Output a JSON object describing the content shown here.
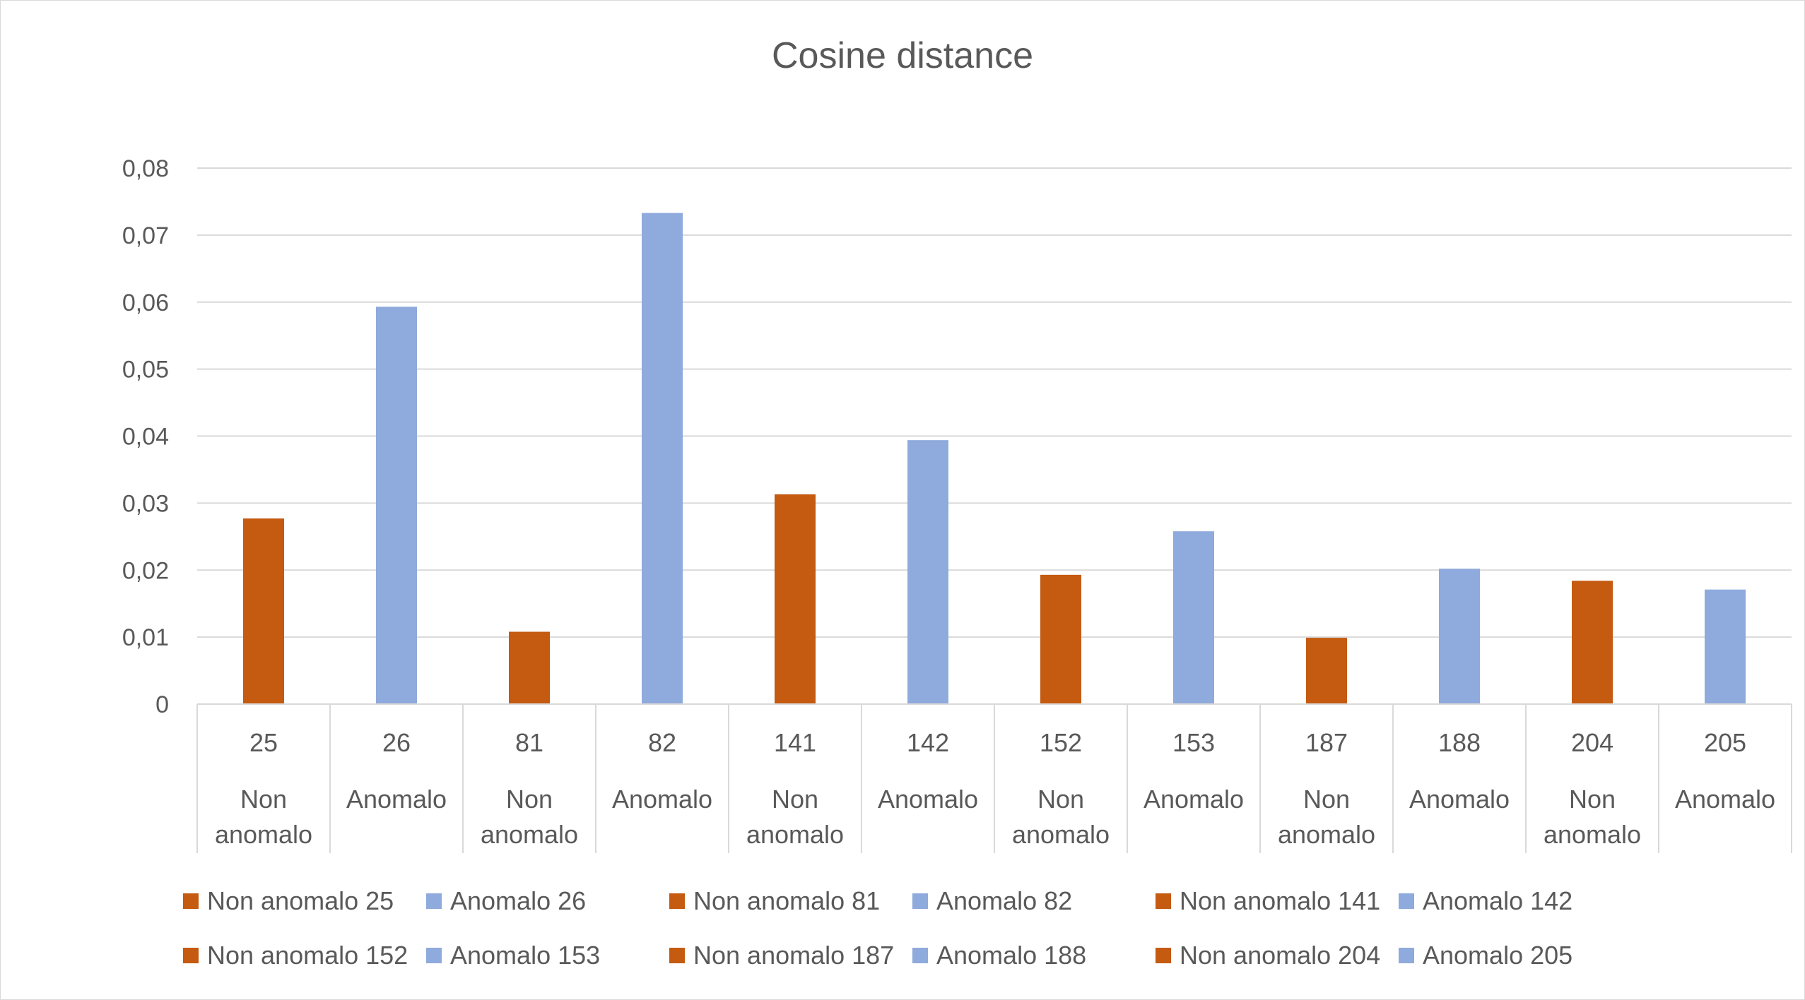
{
  "chart_data": {
    "type": "bar",
    "title": "Cosine distance",
    "xlabel": "",
    "ylabel": "",
    "ylim": [
      0,
      0.08
    ],
    "yticks": [
      "0",
      "0,01",
      "0,02",
      "0,03",
      "0,04",
      "0,05",
      "0,06",
      "0,07",
      "0,08"
    ],
    "grid": true,
    "legend_position": "bottom",
    "colors": {
      "Non anomalo": "#c55a11",
      "Anomalo": "#8faadc"
    },
    "categories": [
      {
        "id": "25",
        "group": "Non anomalo",
        "group_lines": [
          "Non",
          "anomalo"
        ]
      },
      {
        "id": "26",
        "group": "Anomalo",
        "group_lines": [
          "Anomalo"
        ]
      },
      {
        "id": "81",
        "group": "Non anomalo",
        "group_lines": [
          "Non",
          "anomalo"
        ]
      },
      {
        "id": "82",
        "group": "Anomalo",
        "group_lines": [
          "Anomalo"
        ]
      },
      {
        "id": "141",
        "group": "Non anomalo",
        "group_lines": [
          "Non",
          "anomalo"
        ]
      },
      {
        "id": "142",
        "group": "Anomalo",
        "group_lines": [
          "Anomalo"
        ]
      },
      {
        "id": "152",
        "group": "Non anomalo",
        "group_lines": [
          "Non",
          "anomalo"
        ]
      },
      {
        "id": "153",
        "group": "Anomalo",
        "group_lines": [
          "Anomalo"
        ]
      },
      {
        "id": "187",
        "group": "Non anomalo",
        "group_lines": [
          "Non",
          "anomalo"
        ]
      },
      {
        "id": "188",
        "group": "Anomalo",
        "group_lines": [
          "Anomalo"
        ]
      },
      {
        "id": "204",
        "group": "Non anomalo",
        "group_lines": [
          "Non",
          "anomalo"
        ]
      },
      {
        "id": "205",
        "group": "Anomalo",
        "group_lines": [
          "Anomalo"
        ]
      }
    ],
    "values": [
      0.0277,
      0.0593,
      0.0108,
      0.0733,
      0.0313,
      0.0394,
      0.0193,
      0.0258,
      0.0099,
      0.0202,
      0.0184,
      0.0171
    ],
    "legend": [
      [
        "Non anomalo 25",
        "Anomalo 26",
        "Non anomalo 81",
        "Anomalo 82",
        "Non anomalo 141",
        "Anomalo 142"
      ],
      [
        "Non anomalo 152",
        "Anomalo 153",
        "Non anomalo 187",
        "Anomalo 188",
        "Non anomalo 204",
        "Anomalo 205"
      ]
    ]
  }
}
